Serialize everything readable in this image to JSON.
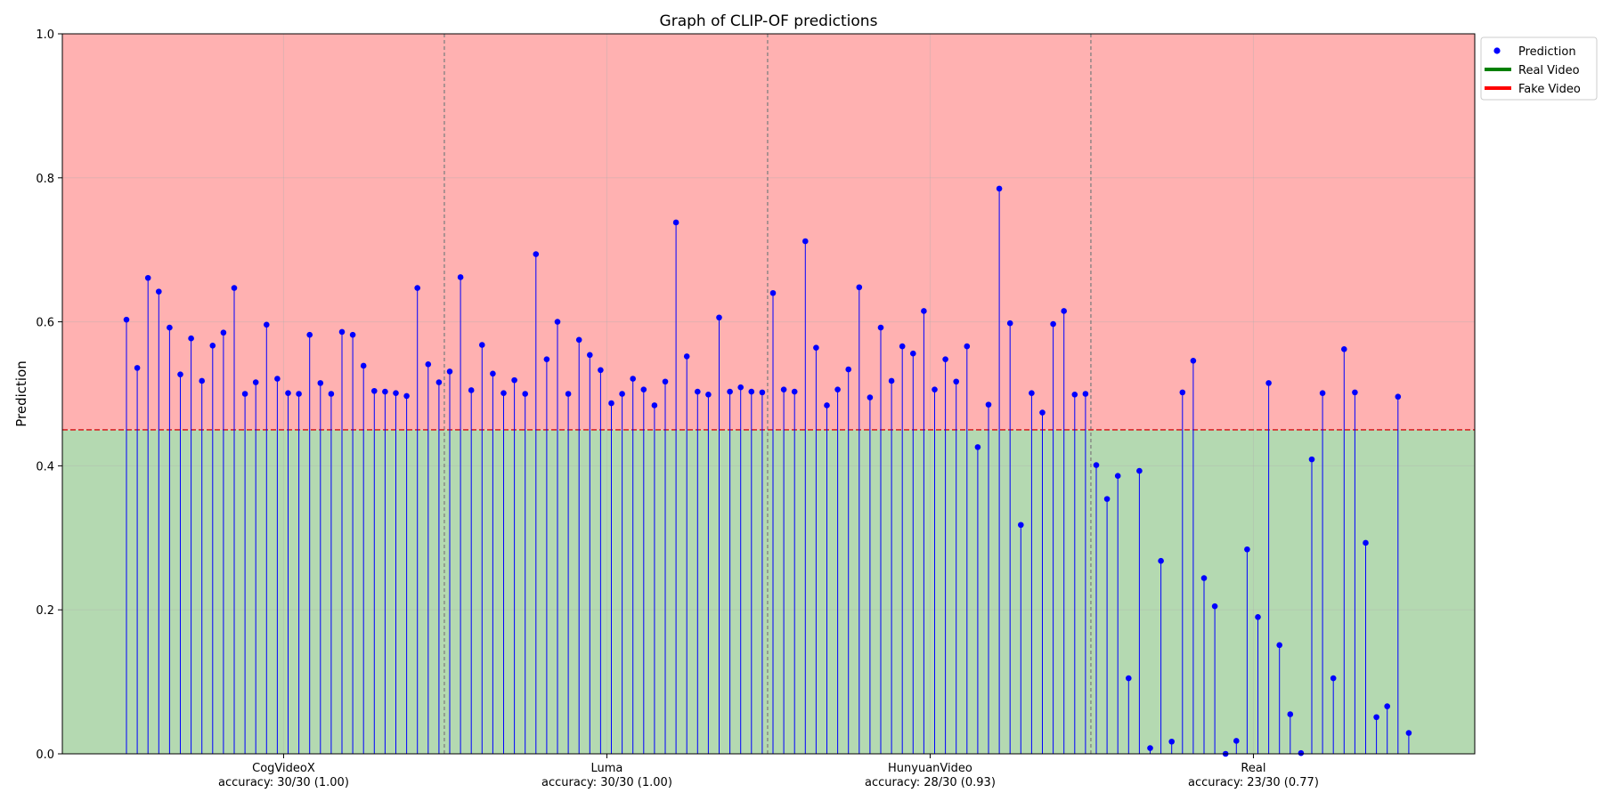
{
  "chart_data": {
    "type": "stem",
    "title": "Graph of CLIP-OF predictions",
    "ylabel": "Prediction",
    "xlabel": "",
    "ylim": [
      0,
      1
    ],
    "yticks": [
      0.0,
      0.2,
      0.4,
      0.6,
      0.8,
      1.0
    ],
    "ytick_labels": [
      "0.0",
      "0.2",
      "0.4",
      "0.6",
      "0.8",
      "1.0"
    ],
    "threshold": 0.45,
    "grid": true,
    "legend": {
      "placement": "top-right-outside",
      "entries": [
        {
          "label": "Prediction",
          "kind": "marker",
          "color": "#0000ff"
        },
        {
          "label": "Real Video",
          "kind": "line",
          "color": "#008000"
        },
        {
          "label": "Fake Video",
          "kind": "line",
          "color": "#ff0000"
        }
      ]
    },
    "colors": {
      "fake_region": "#ffb1b1",
      "real_region": "#b4d9b1",
      "stem": "#0000ff",
      "threshold_line": "#d62728",
      "separator": "#808080"
    },
    "groups": [
      {
        "name": "CogVideoX",
        "accuracy_label": "accuracy: 30/30 (1.00)",
        "values": [
          0.603,
          0.536,
          0.661,
          0.642,
          0.592,
          0.527,
          0.577,
          0.518,
          0.567,
          0.585,
          0.647,
          0.5,
          0.516,
          0.596,
          0.521,
          0.501,
          0.5,
          0.582,
          0.515,
          0.5,
          0.586,
          0.582,
          0.539,
          0.504,
          0.503,
          0.501,
          0.497,
          0.647,
          0.541,
          0.516
        ]
      },
      {
        "name": "Luma",
        "accuracy_label": "accuracy: 30/30 (1.00)",
        "values": [
          0.531,
          0.662,
          0.505,
          0.568,
          0.528,
          0.501,
          0.519,
          0.5,
          0.694,
          0.548,
          0.6,
          0.5,
          0.575,
          0.554,
          0.533,
          0.487,
          0.5,
          0.521,
          0.506,
          0.484,
          0.517,
          0.738,
          0.552,
          0.503,
          0.499,
          0.606,
          0.503,
          0.509,
          0.503,
          0.502
        ]
      },
      {
        "name": "HunyuanVideo",
        "accuracy_label": "accuracy: 28/30 (0.93)",
        "values": [
          0.64,
          0.506,
          0.503,
          0.712,
          0.564,
          0.484,
          0.506,
          0.534,
          0.648,
          0.495,
          0.592,
          0.518,
          0.566,
          0.556,
          0.615,
          0.506,
          0.548,
          0.517,
          0.566,
          0.426,
          0.485,
          0.785,
          0.598,
          0.318,
          0.501,
          0.474,
          0.597,
          0.615,
          0.499,
          0.5
        ]
      },
      {
        "name": "Real",
        "accuracy_label": "accuracy: 23/30 (0.77)",
        "values": [
          0.401,
          0.354,
          0.386,
          0.105,
          0.393,
          0.008,
          0.268,
          0.017,
          0.502,
          0.546,
          0.244,
          0.205,
          0.0,
          0.018,
          0.284,
          0.19,
          0.515,
          0.151,
          0.055,
          0.001,
          0.409,
          0.501,
          0.105,
          0.562,
          0.502,
          0.293,
          0.051,
          0.066,
          0.496,
          0.029
        ]
      }
    ]
  }
}
